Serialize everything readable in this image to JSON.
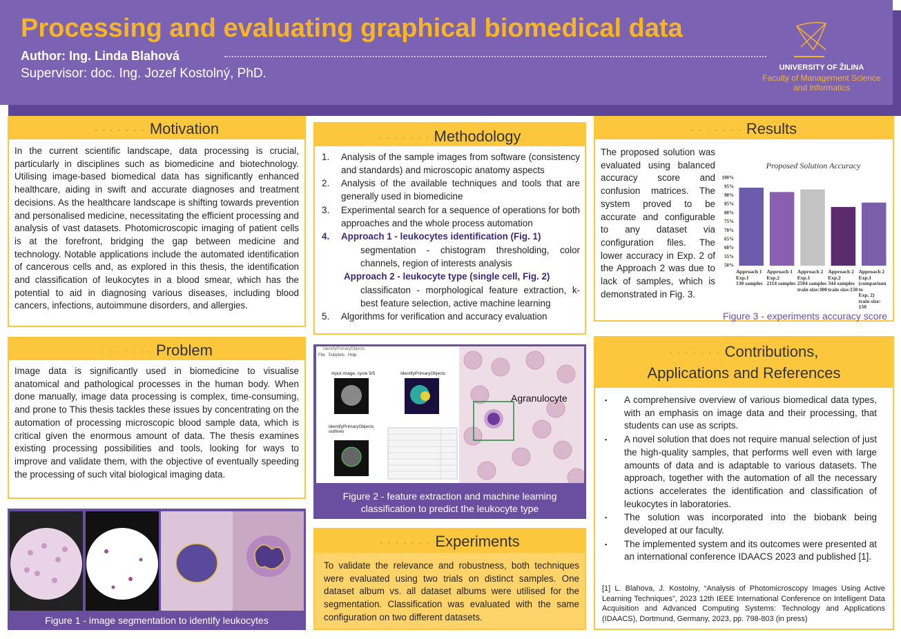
{
  "header": {
    "title": "Processing and evaluating graphical biomedical data",
    "author": "Author: Ing. Linda Blahová",
    "supervisor": "Supervisor: doc. Ing. Jozef Kostolný, PhD.",
    "university": "UNIVERSITY OF ŽILINA",
    "faculty_line1": "Faculty of Management Science",
    "faculty_line2": "and Informatics"
  },
  "motivation": {
    "title": "Motivation",
    "text": "In the current scientific landscape, data processing is crucial, particularly in disciplines such as biomedicine and biotechnology. Utilising image-based biomedical data has significantly enhanced healthcare, aiding in swift and accurate diagnoses and treatment decisions. As the healthcare landscape is shifting towards prevention and personalised medicine, necessitating the efficient processing and analysis of vast datasets. Photomicroscopic imaging of patient cells is at the forefront, bridging the gap between medicine and technology. Notable applications include the automated identification of cancerous cells and, as explored in this thesis, the identification and classification of leukocytes in a blood smear, which has the potential to aid in diagnosing various diseases, including blood cancers, infections, autoimmune disorders, and allergies."
  },
  "problem": {
    "title": "Problem",
    "text": "Image data is significantly used in biomedicine to visualise anatomical and pathological processes in the human body. When done manually, image data processing is complex, time-consuming, and prone to This thesis tackles these issues by concentrating on the automation of processing microscopic blood sample data, which is critical given the enormous amount of data. The thesis examines existing processing possibilities and tools, looking for ways to improve and validate them, with the objective of eventually speeding the processing of such vital biological imaging data."
  },
  "figure1": {
    "caption": "Figure 1 - image segmentation to identify leukocytes"
  },
  "methodology": {
    "title": "Methodology",
    "items": [
      {
        "num": "1.",
        "text": "Analysis of the sample images from software (consistency and standards) and microscopic anatomy aspects"
      },
      {
        "num": "2.",
        "text": "Analysis of the available techniques and tools that are generally used in biomedicine"
      },
      {
        "num": "3.",
        "text": "Experimental search for a sequence of operations for both approaches and the whole process automation"
      },
      {
        "num": "4.",
        "title": "Approach 1 - leukocytes identification (Fig. 1)",
        "detail": "segmentation - chistogram thresholding, color channels, region of interests analysis"
      },
      {
        "title": "Approach 2 - leukocyte type (single cell, Fig. 2)",
        "detail": "classificaton - morphological feature extraction, k-best feature selection, active machine learning"
      },
      {
        "num": "5.",
        "text": "Algorithms for verification and accuracy evaluation"
      }
    ]
  },
  "figure2": {
    "label": "Agranulocyte",
    "window_title": "IdentifyPrimaryObjects",
    "menu": "File   Subplots   Help",
    "plot1": "Input image, cycle 5/5",
    "plot2": "IdentifyPrimaryObjects",
    "plot3": "IdentifyPrimaryObjects outlines",
    "caption_line1": "Figure 2 - feature extraction and machine learning",
    "caption_line2": "classification to predict the leukocyte type"
  },
  "experiments": {
    "title": "Experiments",
    "text": "To validate the relevance and robustness, both techniques were evaluated using two trials on distinct samples. One dataset album vs. all dataset albums were utilised for the segmentation. Classification was evaluated with the same configuration on two different datasets."
  },
  "results": {
    "title": "Results",
    "text": "The proposed solution was evaluated using balanced accuracy score and confusion matrices. The system proved to be accurate and configurable to any dataset via configuration files. The lower accuracy in Exp. 2 of the Approach 2 was due to lack of samples, which is demonstrated in Fig. 3.",
    "caption": "Figure 3 - experiments accuracy score"
  },
  "chart_data": {
    "type": "bar",
    "title": "Proposed Solution Accuracy",
    "categories": [
      "Approach 1\nExp.1\n130 samples",
      "Approach 1\nExp.2\n2114 samples",
      "Approach 2\nExp.1\n2504 samples\ntrain size:300",
      "Approach 2\nExp.2\n344 samples\ntrain size:150",
      "Approach 2\nExp.1\n(comparison to\nExp. 2)\ntrain size: 150"
    ],
    "values": [
      94.5,
      92,
      93.5,
      83.5,
      86
    ],
    "colors": [
      "#6b5bab",
      "#8a5fb0",
      "#c3c3c3",
      "#5a2c6e",
      "#7a5eaa"
    ],
    "ylim": [
      50,
      100
    ],
    "yticks": [
      {
        "value": 50,
        "label": "50%"
      },
      {
        "value": 55,
        "label": "55%"
      },
      {
        "value": 60,
        "label": "60%"
      },
      {
        "value": 65,
        "label": "65%"
      },
      {
        "value": 70,
        "label": "70%"
      },
      {
        "value": 75,
        "label": "75%"
      },
      {
        "value": 80,
        "label": "80%"
      },
      {
        "value": 85,
        "label": "85%"
      },
      {
        "value": 90,
        "label": "90%"
      },
      {
        "value": 95,
        "label": "95%"
      },
      {
        "value": 100,
        "label": "100%"
      }
    ],
    "grid": false
  },
  "contributions": {
    "title_line1": "Contributions,",
    "title_line2": "Applications and References",
    "bullets": [
      "A comprehensive overview of various biomedical data types, with an emphasis on image data and their processing, that students can use as scripts.",
      "A novel solution that does not require manual selection of just the high-quality samples, that performs well even with large amounts of data and is adaptable to various datasets. The approach, together with the automation of all the necessary actions accelerates the identification and classification of leukocytes in laboratories.",
      "The solution was incorporated into the biobank being developed at our faculty.",
      "The implemented system and its outcomes were presented at an international conference IDAACS 2023 and published [1]."
    ],
    "reference": "[1] L. Blahova, J. Kostolny, “Analysis of Photomicroscopy Images Using Active Learning Techniques”, 2023 12th IEEE International Conference on Intelligent Data Acquisition and Advanced Computing Systems: Technology and Applications (IDAACS), Dortmund, Germany, 2023, pp. 798-803 (in press)"
  }
}
